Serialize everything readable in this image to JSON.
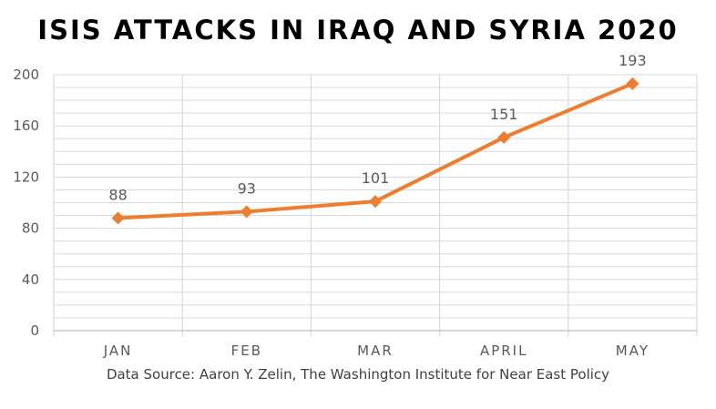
{
  "chart_data": {
    "type": "line",
    "title": "ISIS ATTACKS IN IRAQ AND SYRIA 2020",
    "categories": [
      "JAN",
      "FEB",
      "MAR",
      "APRIL",
      "MAY"
    ],
    "series": [
      {
        "values": [
          88,
          93,
          101,
          151,
          193
        ]
      }
    ],
    "data_labels": [
      "88",
      "93",
      "101",
      "151",
      "193"
    ],
    "y_ticks": [
      "0",
      "40",
      "80",
      "120",
      "160",
      "200"
    ],
    "xlabel": "",
    "ylabel": "",
    "ylim": [
      0,
      200
    ],
    "grid": true,
    "legend": "none",
    "source": "Data Source: Aaron Y. Zelin, The Washington Institute for Near East Policy"
  },
  "colors": {
    "line": "#ed7d31",
    "grid": "#d9d9d9",
    "tick_text": "#595959",
    "data_label": "#595959"
  }
}
